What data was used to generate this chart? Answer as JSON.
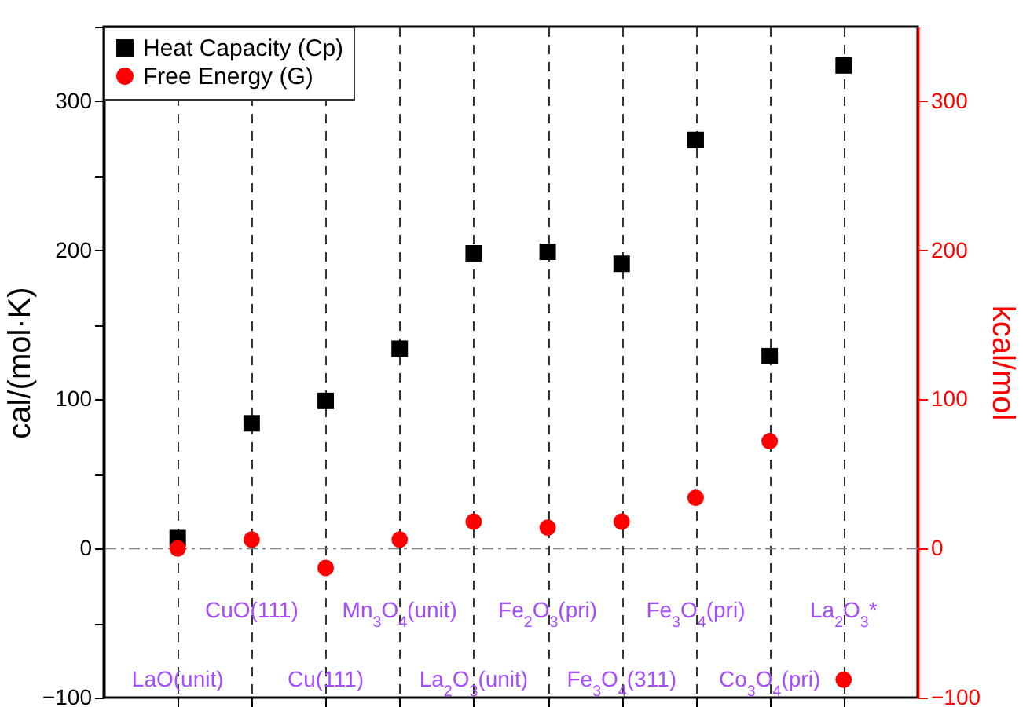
{
  "chart_data": {
    "type": "scatter",
    "categories": [
      "LaO(unit)",
      "CuO(111)",
      "Cu(111)",
      "Mn$_{3}$O$_{4}$(unit)",
      "La$_{2}$O$_{3}$(unit)",
      "Fe$_{2}$O$_{3}$(pri)",
      "Fe$_{3}$O$_{4}$(311)",
      "Fe$_{3}$O$_{4}$(pri)",
      "Co$_{3}$O$_{4}$(pri)",
      "La$_{2}$O$_{3}$*"
    ],
    "ylabel": "cal/(mol·K)",
    "y2label": "kcal/mol",
    "ylim": [
      -100,
      350
    ],
    "yticks": [
      -100,
      {
        "value": -50,
        "label": null
      },
      0,
      {
        "value": 50,
        "label": null
      },
      100,
      {
        "value": 150,
        "label": null
      },
      200,
      {
        "value": 250,
        "label": null
      },
      300,
      {
        "value": 350,
        "label": null
      }
    ],
    "y2lim": [
      -100,
      350
    ],
    "y2ticks": [
      -100,
      0,
      100,
      200,
      300
    ],
    "series": [
      {
        "name": "Heat Capacity (Cp)",
        "color": "#000000",
        "marker": "square",
        "values": [
          7,
          84,
          99,
          134,
          198,
          199,
          191,
          274,
          129,
          324
        ]
      },
      {
        "name": "Free Energy (G)",
        "color": "#ff0000",
        "marker": "circle",
        "axis": "y2",
        "values": [
          0,
          6,
          -13,
          6,
          18,
          14,
          18,
          34,
          72,
          -88
        ]
      }
    ],
    "ref_lines": [
      {
        "axis": "y",
        "value": 0,
        "color": "#808080",
        "line_style": "dashed"
      }
    ],
    "grid": "x",
    "legend": "top left"
  }
}
